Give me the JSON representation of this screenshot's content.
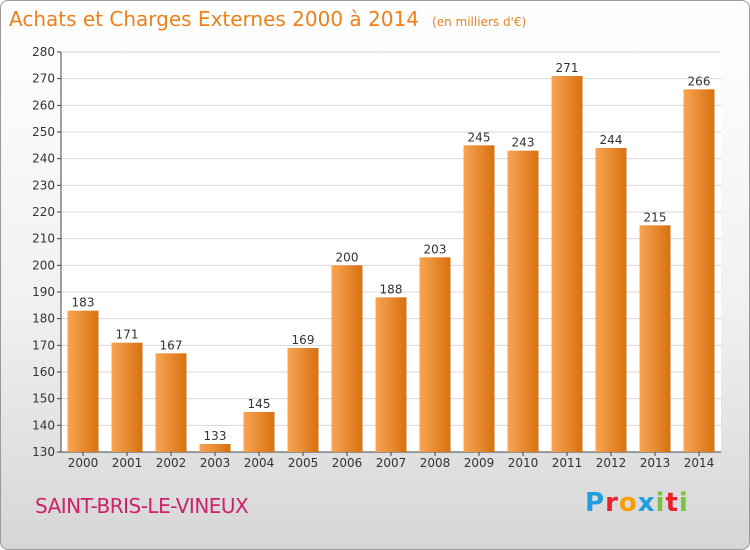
{
  "header": {
    "title": "Achats et Charges Externes 2000 à 2014",
    "subtitle": "(en milliers d'€)"
  },
  "footer": {
    "city": "SAINT-BRIS-LE-VINEUX",
    "logo_letters": [
      "P",
      "r",
      "o",
      "x",
      "i",
      "t",
      "i"
    ],
    "logo_colors": [
      "#1f9fe0",
      "#e8202a",
      "#f5a000",
      "#1f9fe0",
      "#7cc242",
      "#e8202a",
      "#7cc242"
    ]
  },
  "colors": {
    "bar_light": "#f7a555",
    "bar_dark": "#d9700f",
    "title": "#ef7f1a",
    "city": "#d0206a"
  },
  "chart_data": {
    "type": "bar",
    "title": "Achats et Charges Externes 2000 à 2014",
    "subtitle": "(en milliers d'€)",
    "categories": [
      "2000",
      "2001",
      "2002",
      "2003",
      "2004",
      "2005",
      "2006",
      "2007",
      "2008",
      "2009",
      "2010",
      "2011",
      "2012",
      "2013",
      "2014"
    ],
    "values": [
      183,
      171,
      167,
      133,
      145,
      169,
      200,
      188,
      203,
      245,
      243,
      271,
      244,
      215,
      266
    ],
    "ylim": [
      130,
      280
    ],
    "yticks": [
      130,
      140,
      150,
      160,
      170,
      180,
      190,
      200,
      210,
      220,
      230,
      240,
      250,
      260,
      270,
      280
    ],
    "grid": true,
    "data_labels": true
  }
}
